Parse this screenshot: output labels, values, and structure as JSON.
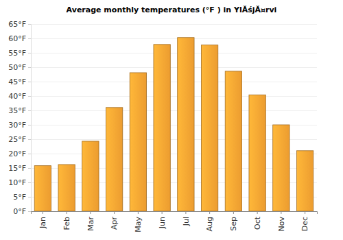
{
  "chart_data": {
    "type": "bar",
    "title": "Average monthly temperatures (°F ) in YlĂśjĂ¤rvi",
    "categories": [
      "Jan",
      "Feb",
      "Mar",
      "Apr",
      "May",
      "Jun",
      "Jul",
      "Aug",
      "Sep",
      "Oct",
      "Nov",
      "Dec"
    ],
    "values": [
      15.8,
      16.2,
      24.3,
      36,
      48.1,
      57.9,
      60.3,
      57.7,
      48.6,
      40.4,
      30,
      21
    ],
    "color": "#f9a533",
    "ylim": [
      0,
      65
    ],
    "yticks": [
      {
        "value": 0,
        "label": "0°F"
      },
      {
        "value": 5,
        "label": "5°F"
      },
      {
        "value": 10,
        "label": "10°F"
      },
      {
        "value": 15,
        "label": "15°F"
      },
      {
        "value": 20,
        "label": "20°F"
      },
      {
        "value": 25,
        "label": "25°F"
      },
      {
        "value": 30,
        "label": "30°F"
      },
      {
        "value": 35,
        "label": "35°F"
      },
      {
        "value": 40,
        "label": "40°F"
      },
      {
        "value": 45,
        "label": "45°F"
      },
      {
        "value": 50,
        "label": "50°F"
      },
      {
        "value": 55,
        "label": "55°F"
      },
      {
        "value": 60,
        "label": "60°F"
      },
      {
        "value": 65,
        "label": "65°F"
      }
    ],
    "grid": true
  }
}
